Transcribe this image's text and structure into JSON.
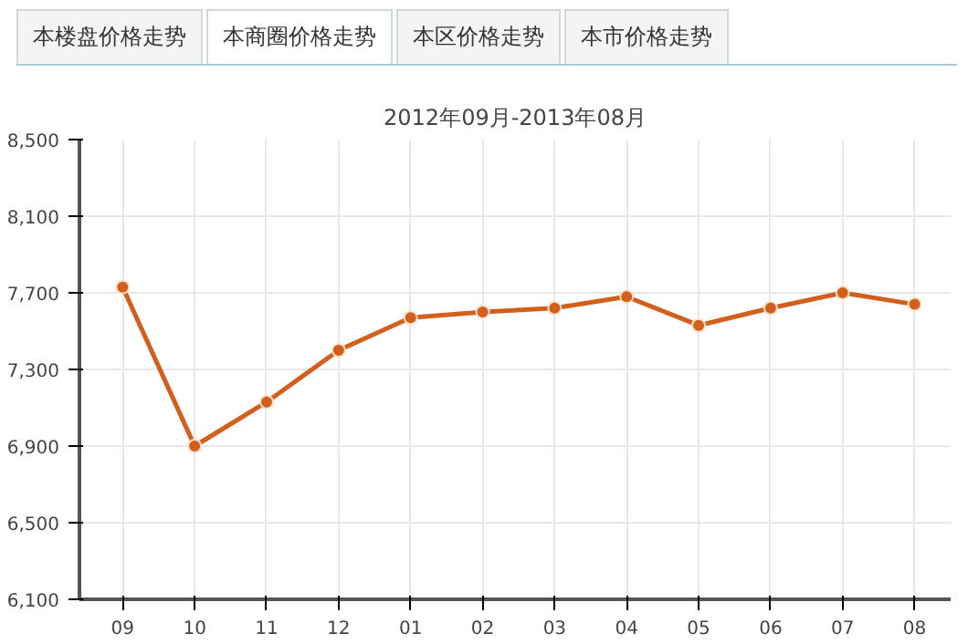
{
  "chart_data": {
    "type": "line",
    "title": "2012年09月-2013年08月",
    "annotations": [
      "本楼盘价格走势",
      "本商圈价格走势",
      "本区价格走势",
      "本市价格走势"
    ],
    "categories": [
      "09",
      "10",
      "11",
      "12",
      "01",
      "02",
      "03",
      "04",
      "05",
      "06",
      "07",
      "08"
    ],
    "series": [
      {
        "color": "#d35f1c",
        "values": [
          7730,
          6900,
          7130,
          7400,
          7570,
          7600,
          7620,
          7680,
          7530,
          7620,
          7700,
          7640
        ]
      }
    ],
    "ylim": [
      6100,
      8500
    ],
    "yticks": [
      {
        "value": 6100,
        "label": "6,100"
      },
      {
        "value": 6500,
        "label": "6,500"
      },
      {
        "value": 6900,
        "label": "6,900"
      },
      {
        "value": 7300,
        "label": "7,300"
      },
      {
        "value": 7700,
        "label": "7,700"
      },
      {
        "value": 8100,
        "label": "8,100"
      },
      {
        "value": 8500,
        "label": "8,500"
      }
    ],
    "grid": true,
    "marker": "circle",
    "line_style": "solid"
  }
}
